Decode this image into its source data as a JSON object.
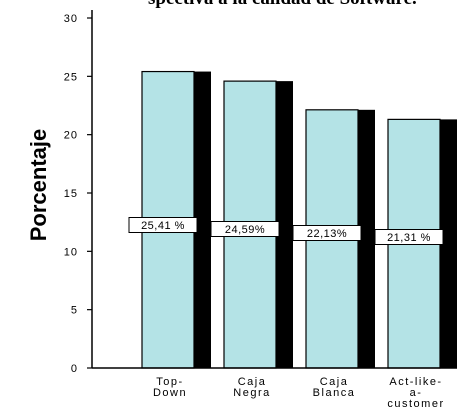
{
  "chart_data": {
    "type": "bar",
    "title": "spectiva a la calidad de Software.",
    "ylabel": "Porcentaje",
    "xlabel": "",
    "ylim": [
      0,
      30
    ],
    "yticks": [
      "0",
      "5",
      "10",
      "15",
      "20",
      "25",
      "30"
    ],
    "categories": [
      [
        "Top-",
        "Down"
      ],
      [
        "Caja",
        "Negra"
      ],
      [
        "Caja",
        "Blanca"
      ],
      [
        "Act-like-",
        "a-",
        "customer"
      ]
    ],
    "values": [
      25.41,
      24.59,
      22.13,
      21.31
    ],
    "data_labels": [
      "25,41 %",
      "24,59%",
      "22,13%",
      "21,31 %"
    ],
    "grid": false,
    "legend": "none",
    "colors": {
      "bar_fill": "#b4e3e6",
      "bar_shadow": "#000000",
      "axis": "#000000",
      "label_box": "#ffffff"
    }
  }
}
